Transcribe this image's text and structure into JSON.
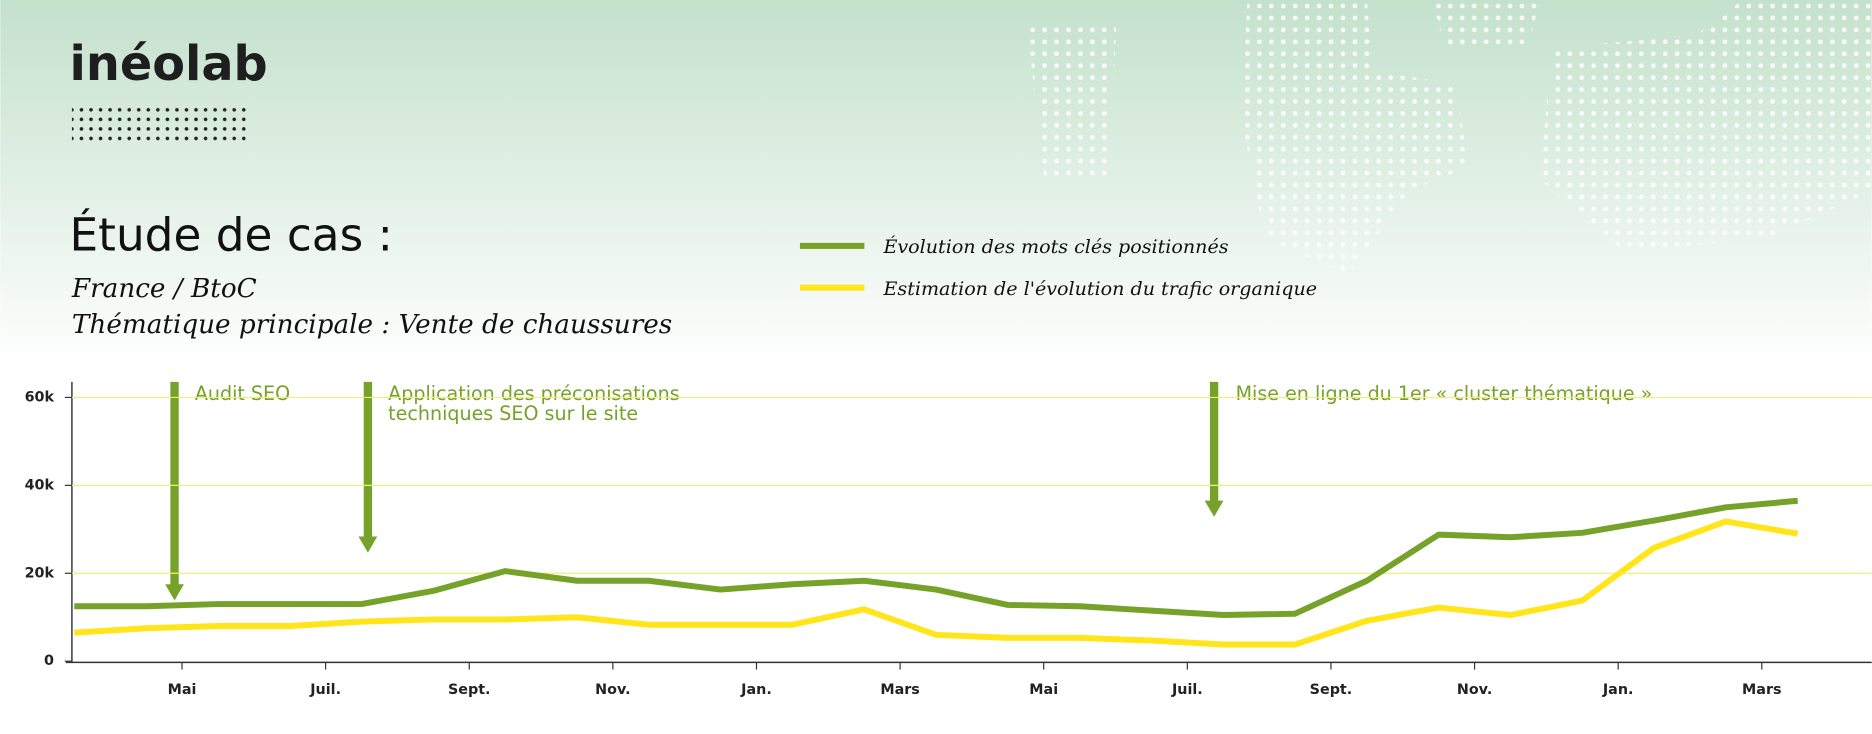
{
  "brand": "inéolab",
  "chart_data": {
    "type": "line",
    "title": "Étude de cas :",
    "subtitle": [
      "France / BtoC",
      "Thématique principale : Vente de chaussures"
    ],
    "x": [
      0,
      1,
      2,
      3,
      4,
      5,
      6,
      7,
      8,
      9,
      10,
      11,
      12,
      13,
      14,
      15,
      16,
      17,
      18,
      19,
      20,
      21,
      22,
      23,
      24
    ],
    "xlim": [
      0,
      24
    ],
    "xticks": [
      {
        "value": 1.5,
        "label": "Mai"
      },
      {
        "value": 3.5,
        "label": "Juil."
      },
      {
        "value": 5.5,
        "label": "Sept."
      },
      {
        "value": 7.5,
        "label": "Nov."
      },
      {
        "value": 9.5,
        "label": "Jan."
      },
      {
        "value": 11.5,
        "label": "Mars"
      },
      {
        "value": 13.5,
        "label": "Mai"
      },
      {
        "value": 15.5,
        "label": "Juil."
      },
      {
        "value": 17.5,
        "label": "Sept."
      },
      {
        "value": 19.5,
        "label": "Nov."
      },
      {
        "value": 21.5,
        "label": "Jan."
      },
      {
        "value": 23.5,
        "label": "Mars"
      }
    ],
    "ylim": [
      0,
      63000
    ],
    "yticks": [
      0,
      {
        "value": 20000,
        "label": "20k"
      },
      {
        "value": 40000,
        "label": "40k"
      },
      {
        "value": 60000,
        "label": "60k"
      }
    ],
    "grid": true,
    "series": [
      {
        "name": "Évolution des mots clés positionnés",
        "color": "#76a22a",
        "values": [
          12500,
          12500,
          13000,
          13000,
          13000,
          16000,
          20500,
          18300,
          18300,
          16300,
          17500,
          18300,
          16300,
          12800,
          12500,
          11500,
          10500,
          10800,
          18300,
          28800,
          28200,
          29200,
          32000,
          35000,
          36500
        ]
      },
      {
        "name": "Estimation de l'évolution du trafic organique",
        "color": "#ffe51a",
        "values": [
          6500,
          7500,
          8000,
          8000,
          9000,
          9500,
          9500,
          10000,
          8300,
          8300,
          8300,
          11800,
          6000,
          5300,
          5300,
          4700,
          3800,
          3800,
          9200,
          12200,
          10500,
          13800,
          25800,
          31800,
          29000
        ]
      }
    ],
    "annotations": [
      [
        "Audit SEO"
      ],
      [
        "Application des préconisations",
        "techniques SEO sur le site"
      ],
      [
        "Mise en ligne du 1er « cluster thématique »"
      ]
    ]
  }
}
